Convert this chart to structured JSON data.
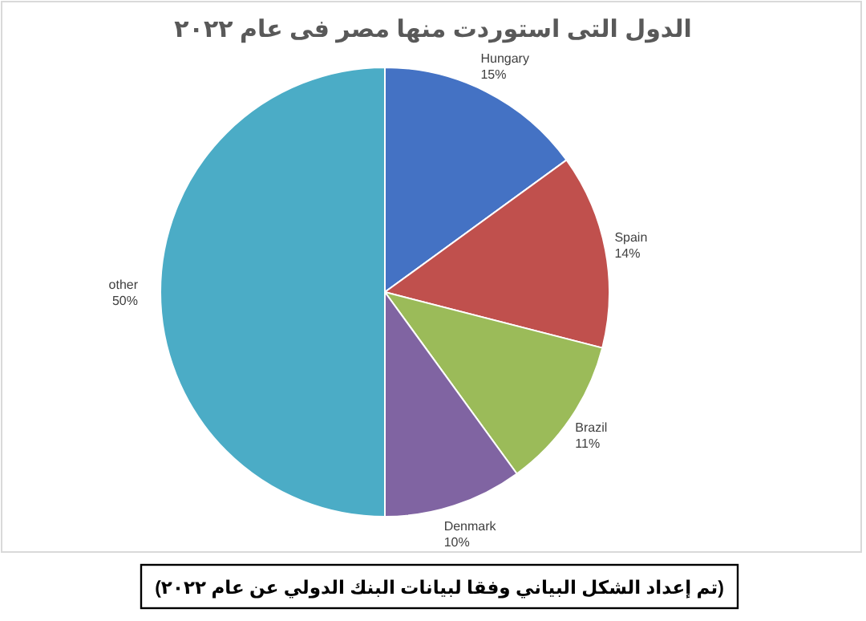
{
  "chart_data": {
    "type": "pie",
    "title": "الدول التى استوردت منها مصر فى عام ٢٠٢٢",
    "categories": [
      "Hungary",
      "Spain",
      "Brazil",
      "Denmark",
      "other"
    ],
    "values": [
      15,
      14,
      11,
      10,
      50
    ],
    "colors": [
      "#4472c4",
      "#c0504d",
      "#9bbb59",
      "#8064a2",
      "#4bacc6"
    ],
    "value_labels": [
      "15%",
      "14%",
      "11%",
      "10%",
      "50%"
    ],
    "legend": false,
    "annotations": [
      "(تم إعداد الشكل البياني وفقا لبيانات البنك الدولي عن عام ٢٠٢٢)"
    ]
  }
}
